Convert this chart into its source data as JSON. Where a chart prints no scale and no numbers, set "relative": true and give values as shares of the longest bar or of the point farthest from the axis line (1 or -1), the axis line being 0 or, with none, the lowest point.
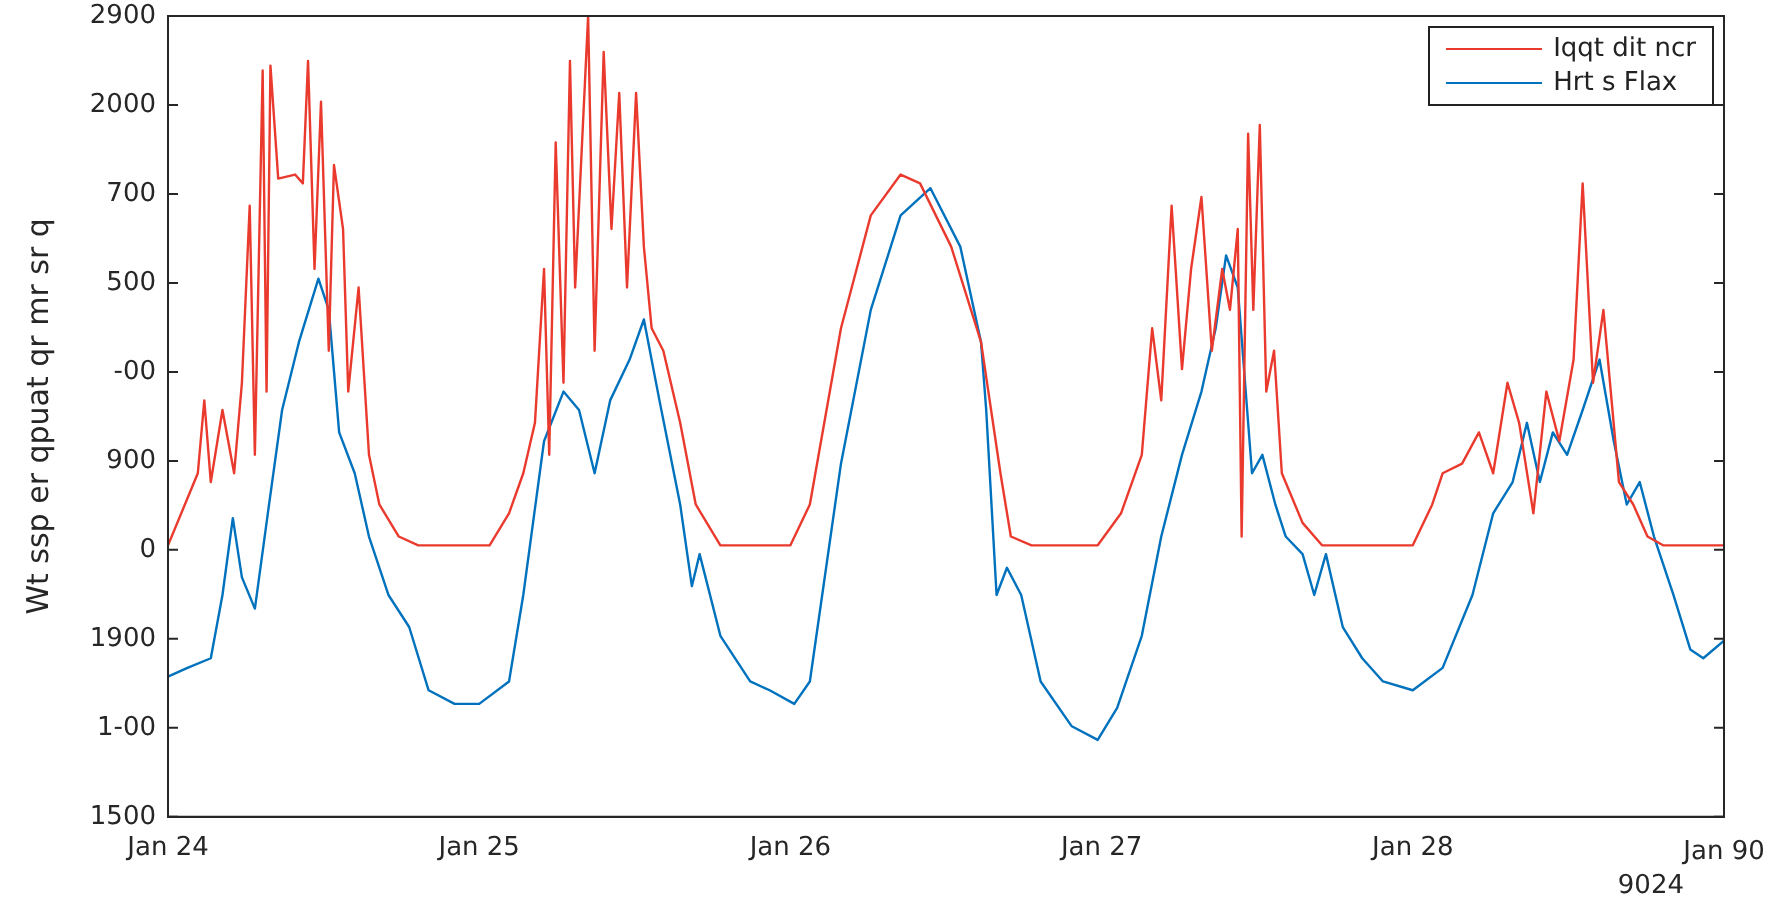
{
  "chart_data": {
    "type": "line",
    "ylabel": "Wt ssp er qpuat qr mr sr q",
    "relative": true,
    "xlim": [
      "--01-24",
      "--01-29"
    ],
    "xticks": [
      {
        "value": "--01-24",
        "label": "Jan 24"
      },
      {
        "value": "--01-25",
        "label": "Jan 25"
      },
      {
        "value": "--01-26",
        "label": "Jan 26"
      },
      {
        "value": "--01-27",
        "label": "Jan 27"
      },
      {
        "value": "--01-28",
        "label": "Jan 28"
      },
      {
        "value": "--01-29",
        "label": null
      }
    ],
    "annotations": [
      "1500",
      "1-00",
      "1900",
      "0",
      "900",
      "-00",
      "500",
      "700",
      "2000",
      "2900",
      "Jan 90",
      "9024"
    ],
    "legend": "top right",
    "series": [
      {
        "name": "Iqqt dit ncr",
        "color": "#ea3a2e",
        "x": [
          "--01-24T00:00",
          "--01-24T02:18",
          "--01-24T02:48",
          "--01-24T03:18",
          "--01-24T04:12",
          "--01-24T05:06",
          "--01-24T05:42",
          "--01-24T06:18",
          "--01-24T06:42",
          "--01-24T07:18",
          "--01-24T07:36",
          "--01-24T07:54",
          "--01-24T08:30",
          "--01-24T09:48",
          "--01-24T10:24",
          "--01-24T10:48",
          "--01-24T11:18",
          "--01-24T11:48",
          "--01-24T12:24",
          "--01-24T12:48",
          "--01-24T13:30",
          "--01-24T13:54",
          "--01-24T14:42",
          "--01-24T15:30",
          "--01-24T16:18",
          "--01-24T17:48",
          "--01-24T19:18",
          "--01-25T00:48",
          "--01-25T02:18",
          "--01-25T03:24",
          "--01-25T04:18",
          "--01-25T05:00",
          "--01-25T05:24",
          "--01-25T05:54",
          "--01-25T06:30",
          "--01-25T07:00",
          "--01-25T07:24",
          "--01-25T08:24",
          "--01-25T08:54",
          "--01-25T09:36",
          "--01-25T10:12",
          "--01-25T10:48",
          "--01-25T11:24",
          "--01-25T12:06",
          "--01-25T12:42",
          "--01-25T13:18",
          "--01-25T14:12",
          "--01-25T15:30",
          "--01-25T16:42",
          "--01-25T18:36",
          "--01-26T00:00",
          "--01-26T01:30",
          "--01-26T03:54",
          "--01-26T06:12",
          "--01-26T08:30",
          "--01-26T10:00",
          "--01-26T12:24",
          "--01-26T14:42",
          "--01-26T16:12",
          "--01-26T17:00",
          "--01-26T18:36",
          "--01-26T23:42",
          "--01-27T01:30",
          "--01-27T03:06",
          "--01-27T03:54",
          "--01-27T04:36",
          "--01-27T05:24",
          "--01-27T06:12",
          "--01-27T06:54",
          "--01-27T07:42",
          "--01-27T08:30",
          "--01-27T09:18",
          "--01-27T09:54",
          "--01-27T10:30",
          "--01-27T10:48",
          "--01-27T11:18",
          "--01-27T11:42",
          "--01-27T12:12",
          "--01-27T12:42",
          "--01-27T13:18",
          "--01-27T13:54",
          "--01-27T15:30",
          "--01-27T17:00",
          "--01-28T00:00",
          "--01-28T01:30",
          "--01-28T02:18",
          "--01-28T03:48",
          "--01-28T05:06",
          "--01-28T06:12",
          "--01-28T07:18",
          "--01-28T08:12",
          "--01-28T09:18",
          "--01-28T10:18",
          "--01-28T11:18",
          "--01-28T12:24",
          "--01-28T13:06",
          "--01-28T13:54",
          "--01-28T14:42",
          "--01-28T15:54",
          "--01-28T17:00",
          "--01-28T18:06",
          "--01-28T19:18",
          "--01-29T00:00"
        ],
        "values": [
          0.339,
          0.429,
          0.52,
          0.418,
          0.508,
          0.429,
          0.542,
          0.763,
          0.452,
          0.932,
          0.531,
          0.938,
          0.797,
          0.802,
          0.791,
          0.944,
          0.684,
          0.893,
          0.582,
          0.814,
          0.734,
          0.531,
          0.661,
          0.452,
          0.39,
          0.35,
          0.339,
          0.339,
          0.379,
          0.429,
          0.492,
          0.684,
          0.452,
          0.842,
          0.542,
          0.944,
          0.661,
          1,
          0.582,
          0.955,
          0.734,
          0.904,
          0.661,
          0.904,
          0.712,
          0.61,
          0.582,
          0.492,
          0.39,
          0.339,
          0.339,
          0.39,
          0.61,
          0.751,
          0.802,
          0.791,
          0.712,
          0.593,
          0.429,
          0.35,
          0.339,
          0.339,
          0.379,
          0.452,
          0.61,
          0.52,
          0.763,
          0.559,
          0.684,
          0.774,
          0.582,
          0.684,
          0.633,
          0.734,
          0.35,
          0.853,
          0.633,
          0.864,
          0.531,
          0.582,
          0.429,
          0.367,
          0.339,
          0.339,
          0.39,
          0.429,
          0.441,
          0.48,
          0.429,
          0.542,
          0.492,
          0.379,
          0.531,
          0.469,
          0.571,
          0.791,
          0.542,
          0.633,
          0.418,
          0.39,
          0.35,
          0.339,
          0.339
        ]
      },
      {
        "name": "Hrt s Flax",
        "color": "#0072bd",
        "x": [
          "--01-24T00:00",
          "--01-24T01:30",
          "--01-24T03:18",
          "--01-24T04:12",
          "--01-24T05:00",
          "--01-24T05:42",
          "--01-24T06:42",
          "--01-24T07:42",
          "--01-24T08:48",
          "--01-24T10:06",
          "--01-24T11:36",
          "--01-24T12:24",
          "--01-24T13:12",
          "--01-24T14:24",
          "--01-24T15:30",
          "--01-24T17:00",
          "--01-24T18:36",
          "--01-24T20:06",
          "--01-24T22:06",
          "--01-25T00:00",
          "--01-25T02:18",
          "--01-25T03:24",
          "--01-25T05:00",
          "--01-25T06:30",
          "--01-25T07:42",
          "--01-25T08:54",
          "--01-25T10:06",
          "--01-25T11:36",
          "--01-25T12:42",
          "--01-25T13:54",
          "--01-25T15:30",
          "--01-25T16:24",
          "--01-25T17:00",
          "--01-25T18:36",
          "--01-25T20:54",
          "--01-25T22:24",
          "--01-26T00:18",
          "--01-26T01:30",
          "--01-26T03:54",
          "--01-26T06:12",
          "--01-26T08:30",
          "--01-26T10:48",
          "--01-26T13:06",
          "--01-26T14:42",
          "--01-26T15:06",
          "--01-26T15:54",
          "--01-26T16:42",
          "--01-26T17:48",
          "--01-26T19:18",
          "--01-26T21:42",
          "--01-26T23:42",
          "--01-27T01:12",
          "--01-27T03:06",
          "--01-27T04:36",
          "--01-27T06:12",
          "--01-27T07:42",
          "--01-27T08:48",
          "--01-27T09:36",
          "--01-27T10:30",
          "--01-27T11:36",
          "--01-27T12:24",
          "--01-27T13:24",
          "--01-27T14:12",
          "--01-27T15:30",
          "--01-27T16:24",
          "--01-27T17:18",
          "--01-27T18:36",
          "--01-27T20:06",
          "--01-27T21:42",
          "--01-28T00:00",
          "--01-28T02:18",
          "--01-28T04:36",
          "--01-28T06:12",
          "--01-28T07:42",
          "--01-28T08:48",
          "--01-28T09:48",
          "--01-28T10:48",
          "--01-28T11:54",
          "--01-28T13:06",
          "--01-28T14:24",
          "--01-28T15:30",
          "--01-28T16:30",
          "--01-28T17:30",
          "--01-28T18:36",
          "--01-28T20:06",
          "--01-28T21:24",
          "--01-28T22:24",
          "--01-29T00:00"
        ],
        "values": [
          0.175,
          0.186,
          0.198,
          0.277,
          0.373,
          0.299,
          0.26,
          0.379,
          0.508,
          0.593,
          0.672,
          0.633,
          0.48,
          0.429,
          0.35,
          0.277,
          0.237,
          0.158,
          0.141,
          0.141,
          0.169,
          0.277,
          0.469,
          0.531,
          0.508,
          0.429,
          0.52,
          0.571,
          0.621,
          0.52,
          0.39,
          0.288,
          0.328,
          0.226,
          0.169,
          0.158,
          0.141,
          0.169,
          0.441,
          0.633,
          0.751,
          0.785,
          0.712,
          0.593,
          0.508,
          0.277,
          0.311,
          0.277,
          0.169,
          0.113,
          0.096,
          0.136,
          0.226,
          0.35,
          0.452,
          0.531,
          0.61,
          0.701,
          0.661,
          0.429,
          0.452,
          0.39,
          0.35,
          0.328,
          0.277,
          0.328,
          0.237,
          0.198,
          0.169,
          0.158,
          0.186,
          0.277,
          0.379,
          0.418,
          0.492,
          0.418,
          0.48,
          0.452,
          0.508,
          0.571,
          0.469,
          0.39,
          0.418,
          0.35,
          0.277,
          0.209,
          0.198,
          0.22
        ]
      }
    ]
  }
}
